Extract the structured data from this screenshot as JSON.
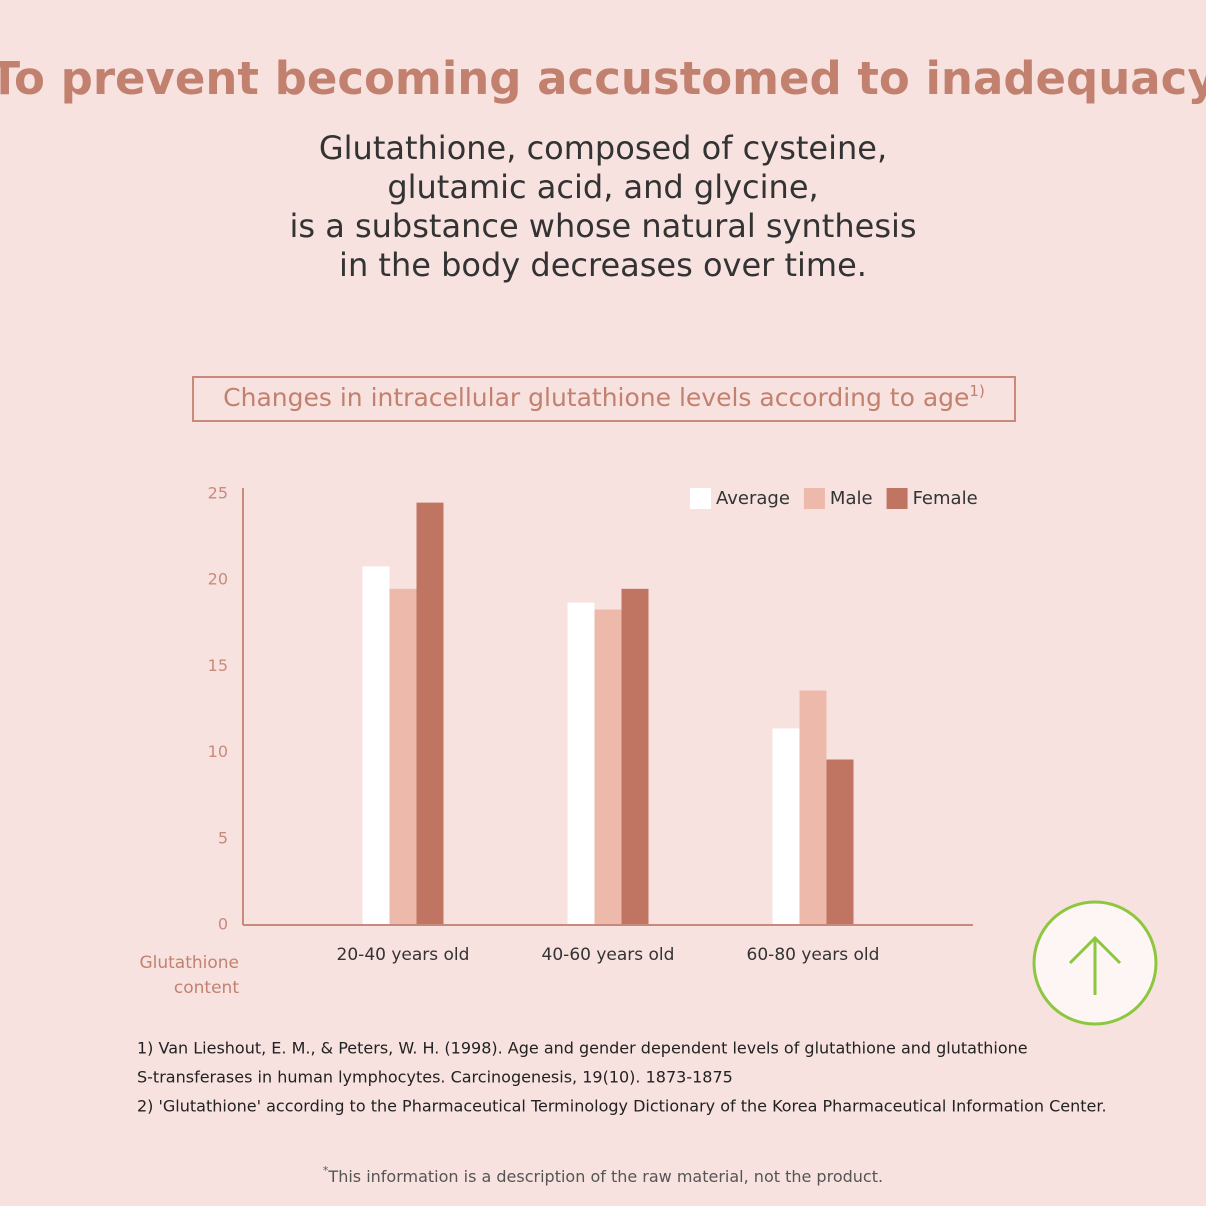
{
  "header": {
    "title": "To prevent becoming accustomed to inadequacy",
    "subtitle_lines": [
      "Glutathione, composed of cysteine,",
      "glutamic acid, and glycine,",
      "is a substance whose natural synthesis",
      "in the body decreases over time."
    ]
  },
  "chart_data": {
    "type": "bar",
    "title": "Changes in intracellular glutathione levels according to age",
    "title_note": "1)",
    "y_label_lines": [
      "Glutathione",
      "content"
    ],
    "categories": [
      "20-40 years old",
      "40-60 years old",
      "60-80 years old"
    ],
    "series": [
      {
        "name": "Average",
        "color": "#ffffff",
        "values": [
          20.8,
          18.7,
          11.4
        ]
      },
      {
        "name": "Male",
        "color": "#ecb9aa",
        "values": [
          19.5,
          18.3,
          13.6
        ]
      },
      {
        "name": "Female",
        "color": "#c07563",
        "values": [
          24.5,
          19.5,
          9.6
        ]
      }
    ],
    "ylim": [
      0,
      25
    ],
    "yticks": [
      0,
      5,
      10,
      15,
      20,
      25
    ],
    "grid": false,
    "legend": "top-right"
  },
  "footnotes": [
    "1) Van Lieshout, E. M., & Peters, W. H. (1998). Age and gender dependent levels of glutathione and glutathione",
    "S-transferases in human lymphocytes. Carcinogenesis, 19(10). 1873-1875",
    "2) 'Glutathione' according to the Pharmaceutical Terminology Dictionary of the Korea Pharmaceutical Information Center."
  ],
  "disclaimer": {
    "marker": "*",
    "text": "This information is a description of the raw material, not the product."
  }
}
